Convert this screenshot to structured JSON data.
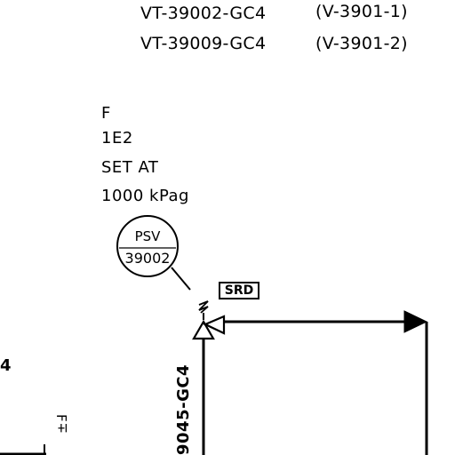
{
  "line_refs": [
    {
      "tag": "VT-39002-GC4",
      "vessel": "(V-3901-1)"
    },
    {
      "tag": "VT-39009-GC4",
      "vessel": "(V-3901-2)"
    }
  ],
  "valve_notes": [
    "F",
    "1E2",
    "SET AT",
    "1000 kPag"
  ],
  "instrument_bubble": {
    "type": "PSV",
    "number": "39002"
  },
  "discharge_tag": "SRD",
  "inlet_line_tag": "9045-GC4",
  "edge_fragment": "4",
  "edge_fragment_rotated": "±Ⅎ"
}
